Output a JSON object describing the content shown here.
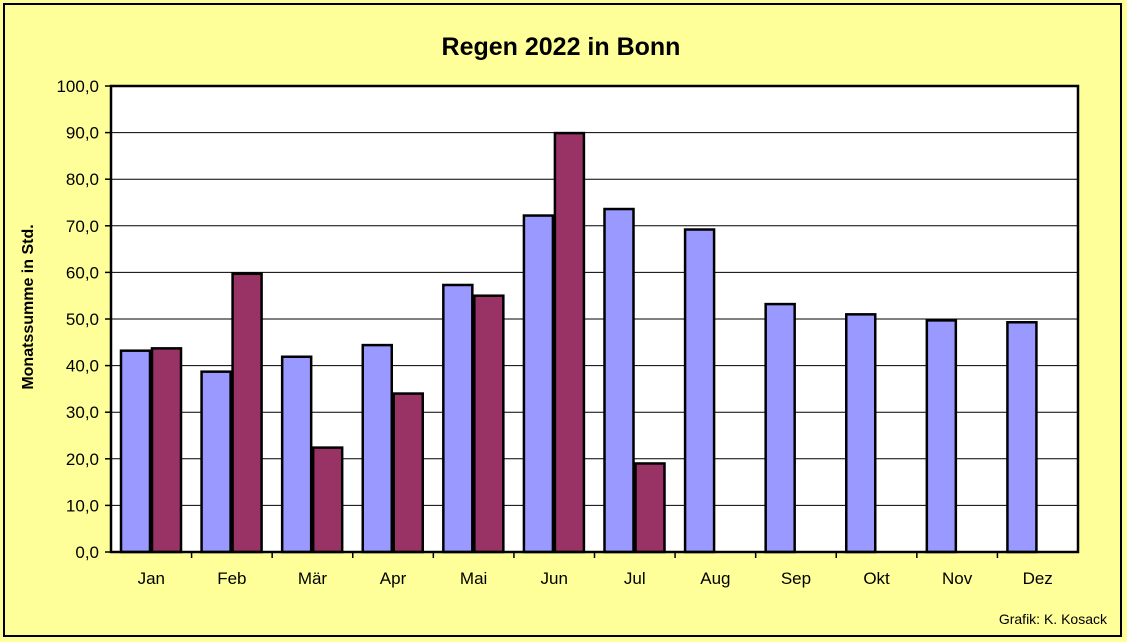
{
  "chart_data": {
    "type": "bar",
    "title": "Regen 2022 in Bonn",
    "ylabel": "Monatssumme in Std.",
    "xlabel": "",
    "ylim": [
      0,
      100
    ],
    "y_ticks": [
      "0,0",
      "10,0",
      "20,0",
      "30,0",
      "40,0",
      "50,0",
      "60,0",
      "70,0",
      "80,0",
      "90,0",
      "100,0"
    ],
    "y_tick_values": [
      0,
      10,
      20,
      30,
      40,
      50,
      60,
      70,
      80,
      90,
      100
    ],
    "categories": [
      "Jan",
      "Feb",
      "Mär",
      "Apr",
      "Mai",
      "Jun",
      "Jul",
      "Aug",
      "Sep",
      "Okt",
      "Nov",
      "Dez"
    ],
    "series": [
      {
        "color": "#9999ff",
        "values": [
          43.2,
          38.7,
          41.9,
          44.4,
          57.3,
          72.2,
          73.6,
          69.2,
          53.2,
          51.0,
          49.7,
          49.3
        ]
      },
      {
        "color": "#993366",
        "values": [
          43.7,
          59.7,
          22.4,
          34.0,
          55.0,
          89.9,
          19.0,
          null,
          null,
          null,
          null,
          null
        ]
      }
    ],
    "grid": true,
    "plot_background": "#ffffff",
    "credit": "Grafik:  K. Kosack"
  }
}
